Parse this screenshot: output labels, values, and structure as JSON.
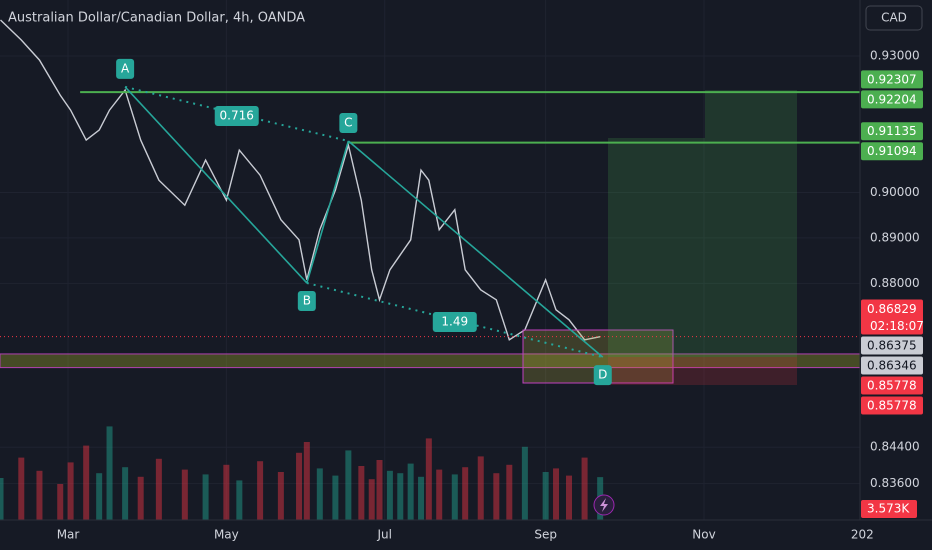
{
  "header": {
    "title": "Australian Dollar/Canadian Dollar, 4h, OANDA",
    "currency": "CAD"
  },
  "chart_data": {
    "type": "line",
    "x": [
      34,
      42,
      49,
      57,
      61,
      67,
      72,
      76,
      82,
      88,
      95,
      105,
      113,
      121,
      126,
      134,
      142,
      149,
      152,
      157,
      163,
      168,
      173,
      177,
      180,
      184,
      188,
      192,
      196,
      199,
      203,
      209,
      213,
      219,
      225,
      230,
      236,
      244,
      248,
      253,
      259,
      265
    ],
    "values": [
      0.9379,
      0.9335,
      0.9291,
      0.9214,
      0.9181,
      0.9115,
      0.9137,
      0.9181,
      0.9225,
      0.9115,
      0.9027,
      0.8972,
      0.9071,
      0.8983,
      0.9093,
      0.9038,
      0.894,
      0.8896,
      0.8808,
      0.8918,
      0.9005,
      0.9104,
      0.8983,
      0.883,
      0.8764,
      0.883,
      0.8863,
      0.8896,
      0.9049,
      0.9027,
      0.8918,
      0.8962,
      0.883,
      0.8786,
      0.8764,
      0.8676,
      0.8698,
      0.8808,
      0.8742,
      0.872,
      0.8676,
      0.8683
    ],
    "color": "#c9ccd4",
    "volume": [
      3500,
      5200,
      4100,
      3000,
      4800,
      6200,
      3900,
      7800,
      4400,
      3600,
      5100,
      4200,
      3800,
      4600,
      3300,
      4900,
      4000,
      5600,
      6500,
      4300,
      3700,
      5800,
      4500,
      3400,
      5000,
      4100,
      3900,
      4700,
      3600,
      6800,
      4200,
      3800,
      4400,
      5300,
      3900,
      4600,
      6100,
      4000,
      4300,
      3700,
      5200,
      3573
    ],
    "volume_lim": [
      0,
      10000
    ],
    "up_color": "#22ab94",
    "down_color": "#f23645",
    "xlim": [
      33.8,
      365.1
    ],
    "ylim": [
      0.828,
      0.9423
    ],
    "xticks": [
      {
        "value": 60,
        "label": "Mar"
      },
      {
        "value": 121,
        "label": "May"
      },
      {
        "value": 182,
        "label": "Jul"
      },
      {
        "value": 244,
        "label": "Sep"
      },
      {
        "value": 305,
        "label": "Nov"
      },
      {
        "value": 366,
        "label": "202"
      }
    ],
    "yticks": [
      {
        "value": 0.93,
        "label": "0.93000"
      },
      {
        "value": 0.9,
        "label": "0.90000"
      },
      {
        "value": 0.89,
        "label": "0.89000"
      },
      {
        "value": 0.88,
        "label": "0.88000"
      },
      {
        "value": 0.844,
        "label": "0.84400"
      },
      {
        "value": 0.836,
        "label": "0.83600"
      }
    ],
    "grid": true,
    "pattern": {
      "color": "#26a69a",
      "points": [
        {
          "label": "A",
          "x": 82,
          "y": 0.9232
        },
        {
          "label": "B",
          "x": 152,
          "y": 0.8801
        },
        {
          "label": "C",
          "x": 168,
          "y": 0.9113
        },
        {
          "label": "D",
          "x": 266,
          "y": 0.8638
        }
      ],
      "ratios": [
        0.716,
        1.49
      ]
    },
    "levels": [
      0.92204,
      0.91094
    ],
    "level_color": "#4caf50",
    "zone": [
      0.8615,
      0.8645
    ],
    "price_labels": [
      {
        "value": 0.92307,
        "color": "#4caf50"
      },
      {
        "value": 0.92204,
        "color": "#4caf50"
      },
      {
        "value": 0.91135,
        "color": "#4caf50"
      },
      {
        "value": 0.91094,
        "color": "#4caf50"
      },
      {
        "value": 0.86829,
        "color": "#f23645",
        "countdown": "02:18:07"
      },
      {
        "value": 0.86375,
        "color": "#c9ccd4"
      },
      {
        "value": 0.86346,
        "color": "#c9ccd4"
      },
      {
        "value": 0.85778,
        "color": "#f23645"
      },
      {
        "value": 0.85778,
        "color": "#f23645"
      }
    ],
    "volume_badge": {
      "value": 3573,
      "label": "3.573K",
      "color": "#f23645"
    }
  }
}
